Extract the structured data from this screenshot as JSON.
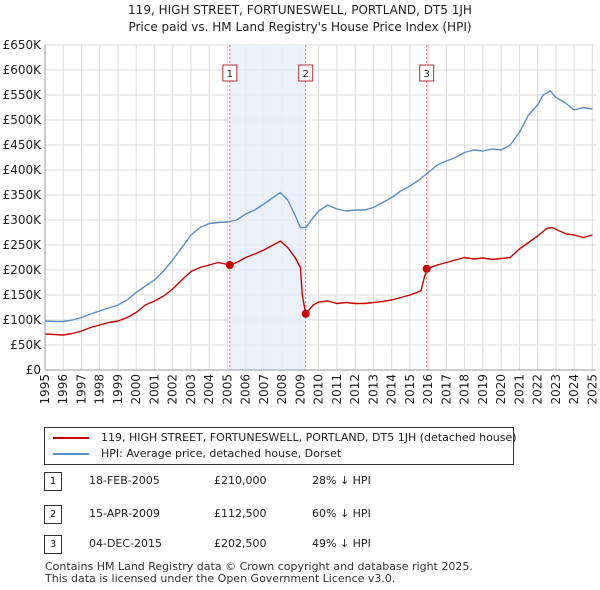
{
  "title_line1": "119, HIGH STREET, FORTUNESWELL, PORTLAND, DT5 1JH",
  "title_line2": "Price paid vs. HM Land Registry's House Price Index (HPI)",
  "colors": {
    "price_line": "#cc0000",
    "hpi_line": "#5b8ec4",
    "shade": "#e8eefa",
    "vline": "#e07070"
  },
  "legend": {
    "property_label": "119, HIGH STREET, FORTUNESWELL, PORTLAND, DT5 1JH (detached house)",
    "hpi_label": "HPI: Average price, detached house, Dorset"
  },
  "sales": [
    {
      "marker": "1",
      "date": "18-FEB-2005",
      "price": "£210,000",
      "hpi": "28% ↓ HPI"
    },
    {
      "marker": "2",
      "date": "15-APR-2009",
      "price": "£112,500",
      "hpi": "60% ↓ HPI"
    },
    {
      "marker": "3",
      "date": "04-DEC-2015",
      "price": "£202,500",
      "hpi": "49% ↓ HPI"
    }
  ],
  "footer": {
    "line1": "Contains HM Land Registry data © Crown copyright and database right 2025.",
    "line2": "This data is licensed under the Open Government Licence v3.0."
  },
  "chart_data": {
    "type": "line",
    "xlim": [
      1995,
      2025.2
    ],
    "ylim": [
      0,
      650000
    ],
    "y_ticks": [
      0,
      50000,
      100000,
      150000,
      200000,
      250000,
      300000,
      350000,
      400000,
      450000,
      500000,
      550000,
      600000,
      650000
    ],
    "y_tick_labels": [
      "£0",
      "£50K",
      "£100K",
      "£150K",
      "£200K",
      "£250K",
      "£300K",
      "£350K",
      "£400K",
      "£450K",
      "£500K",
      "£550K",
      "£600K",
      "£650K"
    ],
    "x_ticks": [
      1995,
      1996,
      1997,
      1998,
      1999,
      2000,
      2001,
      2002,
      2003,
      2004,
      2005,
      2006,
      2007,
      2008,
      2009,
      2010,
      2011,
      2012,
      2013,
      2014,
      2015,
      2016,
      2017,
      2018,
      2019,
      2020,
      2021,
      2022,
      2023,
      2024,
      2025
    ],
    "x_tick_labels": [
      "1995",
      "1996",
      "1997",
      "1998",
      "1999",
      "2000",
      "2001",
      "2002",
      "2003",
      "2004",
      "2005",
      "2006",
      "2007",
      "2008",
      "2009",
      "2010",
      "2011",
      "2012",
      "2013",
      "2014",
      "2015",
      "2016",
      "2017",
      "2018",
      "2019",
      "2020",
      "2021",
      "2022",
      "2023",
      "2024",
      "2025"
    ],
    "shaded_periods": [
      [
        2005.13,
        2009.29
      ]
    ],
    "sale_events": [
      {
        "label": "1",
        "x": 2005.13,
        "y": 210000
      },
      {
        "label": "2",
        "x": 2009.29,
        "y": 112500
      },
      {
        "label": "3",
        "x": 2015.92,
        "y": 202500
      }
    ],
    "series": [
      {
        "name": "119, HIGH STREET, FORTUNESWELL, PORTLAND, DT5 1JH (detached house)",
        "x": [
          1995,
          1995.5,
          1996,
          1996.5,
          1997,
          1997.5,
          1998,
          1998.5,
          1999,
          1999.5,
          2000,
          2000.5,
          2001,
          2001.5,
          2002,
          2002.5,
          2003,
          2003.5,
          2004,
          2004.5,
          2005.13,
          2005.5,
          2006,
          2006.5,
          2007,
          2007.5,
          2007.9,
          2008.3,
          2008.7,
          2009.0,
          2009.1,
          2009.29,
          2009.7,
          2010,
          2010.5,
          2011,
          2011.5,
          2012,
          2012.5,
          2013,
          2013.5,
          2014,
          2014.5,
          2015,
          2015.6,
          2015.92,
          2016.5,
          2017,
          2017.5,
          2018,
          2018.5,
          2019,
          2019.5,
          2020,
          2020.5,
          2021,
          2021.5,
          2022,
          2022.5,
          2022.8,
          2023.2,
          2023.6,
          2024,
          2024.5,
          2025
        ],
        "y": [
          72000,
          71000,
          70000,
          73000,
          78000,
          85000,
          90000,
          95000,
          98000,
          105000,
          115000,
          130000,
          138000,
          148000,
          162000,
          180000,
          197000,
          205000,
          210000,
          215000,
          210000,
          215000,
          225000,
          232000,
          240000,
          250000,
          258000,
          245000,
          225000,
          205000,
          150000,
          112500,
          130000,
          136000,
          138000,
          133000,
          135000,
          133000,
          133000,
          135000,
          137000,
          140000,
          145000,
          150000,
          158000,
          202500,
          210000,
          215000,
          220000,
          225000,
          222000,
          224000,
          221000,
          223000,
          225000,
          242000,
          255000,
          268000,
          283000,
          285000,
          278000,
          272000,
          270000,
          265000,
          270000
        ]
      },
      {
        "name": "HPI: Average price, detached house, Dorset",
        "x": [
          1995,
          1995.5,
          1996,
          1996.5,
          1997,
          1997.5,
          1998,
          1998.5,
          1999,
          1999.5,
          2000,
          2000.5,
          2001,
          2001.5,
          2002,
          2002.5,
          2003,
          2003.5,
          2004,
          2004.5,
          2005,
          2005.5,
          2006,
          2006.5,
          2007,
          2007.5,
          2007.9,
          2008.3,
          2008.7,
          2009.0,
          2009.3,
          2009.7,
          2010,
          2010.5,
          2011,
          2011.5,
          2012,
          2012.5,
          2013,
          2013.5,
          2014,
          2014.5,
          2015,
          2015.5,
          2016,
          2016.5,
          2017,
          2017.5,
          2018,
          2018.5,
          2019,
          2019.5,
          2020,
          2020.5,
          2021,
          2021.5,
          2022,
          2022.3,
          2022.7,
          2023,
          2023.5,
          2024,
          2024.5,
          2025
        ],
        "y": [
          98000,
          97000,
          97000,
          100000,
          105000,
          112000,
          118000,
          124000,
          130000,
          140000,
          155000,
          168000,
          180000,
          198000,
          220000,
          245000,
          270000,
          285000,
          293000,
          295000,
          296000,
          300000,
          312000,
          320000,
          332000,
          345000,
          355000,
          340000,
          310000,
          285000,
          285000,
          305000,
          318000,
          330000,
          322000,
          318000,
          320000,
          320000,
          325000,
          335000,
          345000,
          358000,
          368000,
          380000,
          395000,
          410000,
          418000,
          425000,
          435000,
          440000,
          438000,
          442000,
          440000,
          450000,
          475000,
          510000,
          530000,
          550000,
          558000,
          545000,
          535000,
          520000,
          525000,
          522000
        ]
      }
    ]
  }
}
